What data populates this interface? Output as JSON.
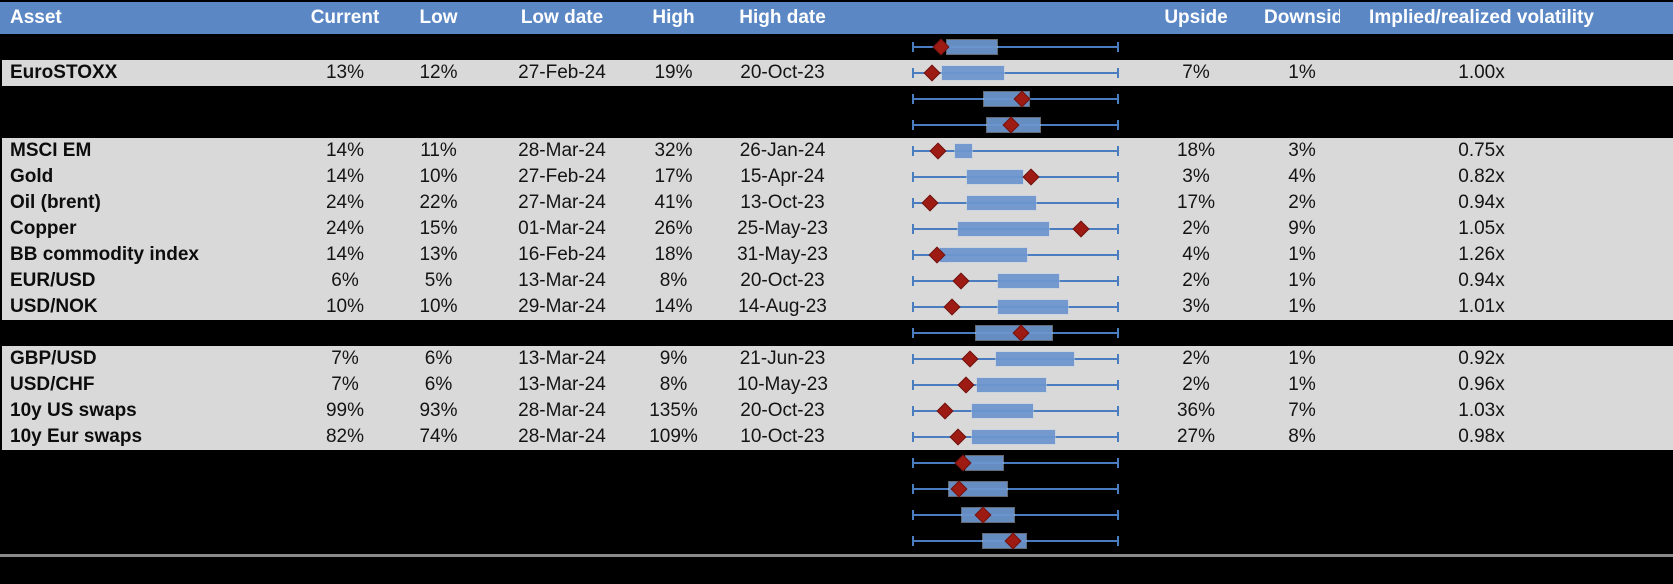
{
  "header": {
    "asset": "Asset",
    "current": "Current",
    "low": "Low",
    "low_date": "Low date",
    "high": "High",
    "high_date": "High date",
    "upside": "Upside",
    "downside": "Downside",
    "implied": "Implied/realized volatility"
  },
  "colors": {
    "header_bg": "#5B87C5",
    "row_bg": "#D9D9D9",
    "spacer_bg": "#000000",
    "whisker_blue": "#4A7CC0",
    "box_blue": "#6D96CE",
    "marker_red": "#9E1B14",
    "divider_gray": "#8A8A8A"
  },
  "boxplot": {
    "range_min_fraction": 0.0,
    "range_max_fraction": 1.0,
    "marker_meaning": "current value (red diamond)",
    "box_meaning": "blue box over 52-week whisker range"
  },
  "rows": [
    {
      "type": "spacer",
      "box": [
        0.164,
        0.408
      ],
      "marker": 0.135
    },
    {
      "type": "data",
      "asset": "EuroSTOXX",
      "current": "13%",
      "low": "12%",
      "low_date": "27-Feb-24",
      "high": "19%",
      "high_date": "20-Oct-23",
      "upside": "7%",
      "downside": "1%",
      "implied": "1.00x",
      "box": [
        0.14,
        0.444
      ],
      "marker": 0.094
    },
    {
      "type": "spacer",
      "box": [
        0.345,
        0.567
      ],
      "marker": 0.533
    },
    {
      "type": "spacer",
      "box": [
        0.36,
        0.62
      ],
      "marker": 0.478
    },
    {
      "type": "data",
      "asset": "MSCI EM",
      "current": "14%",
      "low": "11%",
      "low_date": "28-Mar-24",
      "high": "32%",
      "high_date": "26-Jan-24",
      "upside": "18%",
      "downside": "3%",
      "implied": "0.75x",
      "box": [
        0.205,
        0.29
      ],
      "marker": 0.121
    },
    {
      "type": "data",
      "asset": "Gold",
      "current": "14%",
      "low": "10%",
      "low_date": "27-Feb-24",
      "high": "17%",
      "high_date": "15-Apr-24",
      "upside": "3%",
      "downside": "4%",
      "implied": "0.82x",
      "box": [
        0.262,
        0.537
      ],
      "marker": 0.574
    },
    {
      "type": "data",
      "asset": "Oil (brent)",
      "current": "24%",
      "low": "22%",
      "low_date": "27-Mar-24",
      "high": "41%",
      "high_date": "13-Oct-23",
      "upside": "17%",
      "downside": "2%",
      "implied": "0.94x",
      "box": [
        0.262,
        0.598
      ],
      "marker": 0.083
    },
    {
      "type": "data",
      "asset": "Copper",
      "current": "24%",
      "low": "15%",
      "low_date": "01-Mar-24",
      "high": "26%",
      "high_date": "25-May-23",
      "upside": "2%",
      "downside": "9%",
      "implied": "1.05x",
      "box": [
        0.218,
        0.663
      ],
      "marker": 0.82
    },
    {
      "type": "data",
      "asset": "BB commodity index",
      "current": "14%",
      "low": "13%",
      "low_date": "16-Feb-24",
      "high": "18%",
      "high_date": "31-May-23",
      "upside": "4%",
      "downside": "1%",
      "implied": "1.26x",
      "box": [
        0.132,
        0.554
      ],
      "marker": 0.116
    },
    {
      "type": "data",
      "asset": "EUR/USD",
      "current": "6%",
      "low": "5%",
      "low_date": "13-Mar-24",
      "high": "8%",
      "high_date": "20-Oct-23",
      "upside": "2%",
      "downside": "1%",
      "implied": "0.94x",
      "box": [
        0.416,
        0.714
      ],
      "marker": 0.234
    },
    {
      "type": "data",
      "asset": "USD/NOK",
      "current": "10%",
      "low": "10%",
      "low_date": "29-Mar-24",
      "high": "14%",
      "high_date": "14-Aug-23",
      "upside": "3%",
      "downside": "1%",
      "implied": "1.01x",
      "box": [
        0.414,
        0.757
      ],
      "marker": 0.189
    },
    {
      "type": "spacer",
      "box": [
        0.307,
        0.68
      ],
      "marker": 0.528
    },
    {
      "type": "data",
      "asset": "GBP/USD",
      "current": "7%",
      "low": "6%",
      "low_date": "13-Mar-24",
      "high": "9%",
      "high_date": "21-Jun-23",
      "upside": "2%",
      "downside": "1%",
      "implied": "0.92x",
      "box": [
        0.407,
        0.783
      ],
      "marker": 0.278
    },
    {
      "type": "data",
      "asset": "USD/CHF",
      "current": "7%",
      "low": "6%",
      "low_date": "13-Mar-24",
      "high": "8%",
      "high_date": "10-May-23",
      "upside": "2%",
      "downside": "1%",
      "implied": "0.96x",
      "box": [
        0.31,
        0.647
      ],
      "marker": 0.259
    },
    {
      "type": "data",
      "asset": "10y US swaps",
      "current": "99%",
      "low": "93%",
      "low_date": "28-Mar-24",
      "high": "135%",
      "high_date": "20-Oct-23",
      "upside": "36%",
      "downside": "7%",
      "implied": "1.03x",
      "box": [
        0.286,
        0.584
      ],
      "marker": 0.155
    },
    {
      "type": "data",
      "asset": "10y Eur swaps",
      "current": "82%",
      "low": "74%",
      "low_date": "28-Mar-24",
      "high": "109%",
      "high_date": "10-Oct-23",
      "upside": "27%",
      "downside": "8%",
      "implied": "0.98x",
      "box": [
        0.289,
        0.693
      ],
      "marker": 0.221
    },
    {
      "type": "spacer",
      "box": [
        0.259,
        0.437
      ],
      "marker": 0.242
    },
    {
      "type": "spacer",
      "box": [
        0.177,
        0.46
      ],
      "marker": 0.226
    },
    {
      "type": "spacer",
      "box": [
        0.237,
        0.492
      ],
      "marker": 0.34
    },
    {
      "type": "spacer",
      "box": [
        0.343,
        0.551
      ],
      "marker": 0.486
    }
  ]
}
